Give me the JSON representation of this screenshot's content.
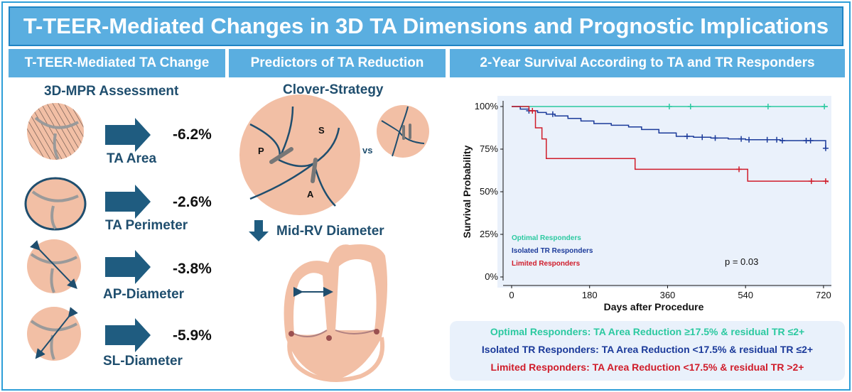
{
  "title": "T-TEER-Mediated Changes in 3D TA Dimensions and Prognostic Implications",
  "sections": {
    "left": "T-TEER-Mediated TA Change",
    "middle": "Predictors of TA Reduction",
    "right": "2-Year Survival According to TA and TR Responders"
  },
  "left_panel": {
    "subtitle": "3D-MPR Assessment",
    "items": [
      {
        "label": "TA Area",
        "change": "-6.2%"
      },
      {
        "label": "TA Perimeter",
        "change": "-2.6%"
      },
      {
        "label": "AP-Diameter",
        "change": "-3.8%"
      },
      {
        "label": "SL-Diameter",
        "change": "-5.9%"
      }
    ]
  },
  "middle_panel": {
    "subtitle": "Clover-Strategy",
    "leaflet_p": "P",
    "leaflet_s": "S",
    "leaflet_a": "A",
    "vs": "vs",
    "rv_label": "Mid-RV Diameter"
  },
  "colors": {
    "header": "#5aaee0",
    "optimal": "#2bc9a0",
    "isolated": "#1b3a9a",
    "limited": "#d01c2a",
    "tissue": "#f2bfa5"
  },
  "chart_data": {
    "type": "line",
    "title": "",
    "xlabel": "Days after Procedure",
    "ylabel": "Survival Probability",
    "xlim": [
      0,
      730
    ],
    "ylim": [
      0,
      1
    ],
    "x_ticks": [
      "0",
      "180",
      "360",
      "540",
      "720"
    ],
    "y_ticks": [
      "0%",
      "25%",
      "50%",
      "75%",
      "100%"
    ],
    "annotation": "p = 0.03",
    "series": [
      {
        "name": "Optimal Responders",
        "color": "#2bc9a0",
        "x": [
          0,
          730
        ],
        "y": [
          1.0,
          1.0
        ],
        "censor_x": [
          364,
          413,
          592,
          722
        ]
      },
      {
        "name": "Isolated TR Responders",
        "color": "#1b3a9a",
        "x": [
          0,
          20,
          40,
          60,
          80,
          100,
          130,
          160,
          190,
          230,
          270,
          300,
          340,
          380,
          420,
          460,
          500,
          540,
          580,
          620,
          660,
          700,
          725
        ],
        "y": [
          1.0,
          0.985,
          0.975,
          0.965,
          0.955,
          0.945,
          0.93,
          0.915,
          0.9,
          0.89,
          0.88,
          0.865,
          0.845,
          0.825,
          0.82,
          0.815,
          0.81,
          0.805,
          0.805,
          0.8,
          0.8,
          0.8,
          0.755
        ],
        "censor_x": [
          40,
          95,
          405,
          440,
          470,
          530,
          548,
          590,
          612,
          625,
          680,
          690,
          725
        ]
      },
      {
        "name": "Limited Responders",
        "color": "#d01c2a",
        "x": [
          0,
          40,
          55,
          70,
          80,
          285,
          535,
          545,
          730
        ],
        "y": [
          1.0,
          0.975,
          0.875,
          0.81,
          0.695,
          0.632,
          0.632,
          0.562,
          0.555
        ],
        "censor_x": [
          48,
          525,
          692,
          725
        ]
      }
    ]
  },
  "legend": {
    "optimal": "Optimal Responders: TA Area Reduction ≥17.5% & residual TR ≤2+",
    "isolated": "Isolated TR Responders: TA Area Reduction <17.5% & residual TR ≤2+",
    "limited": "Limited Responders: TA Area Reduction <17.5% & residual TR >2+"
  }
}
